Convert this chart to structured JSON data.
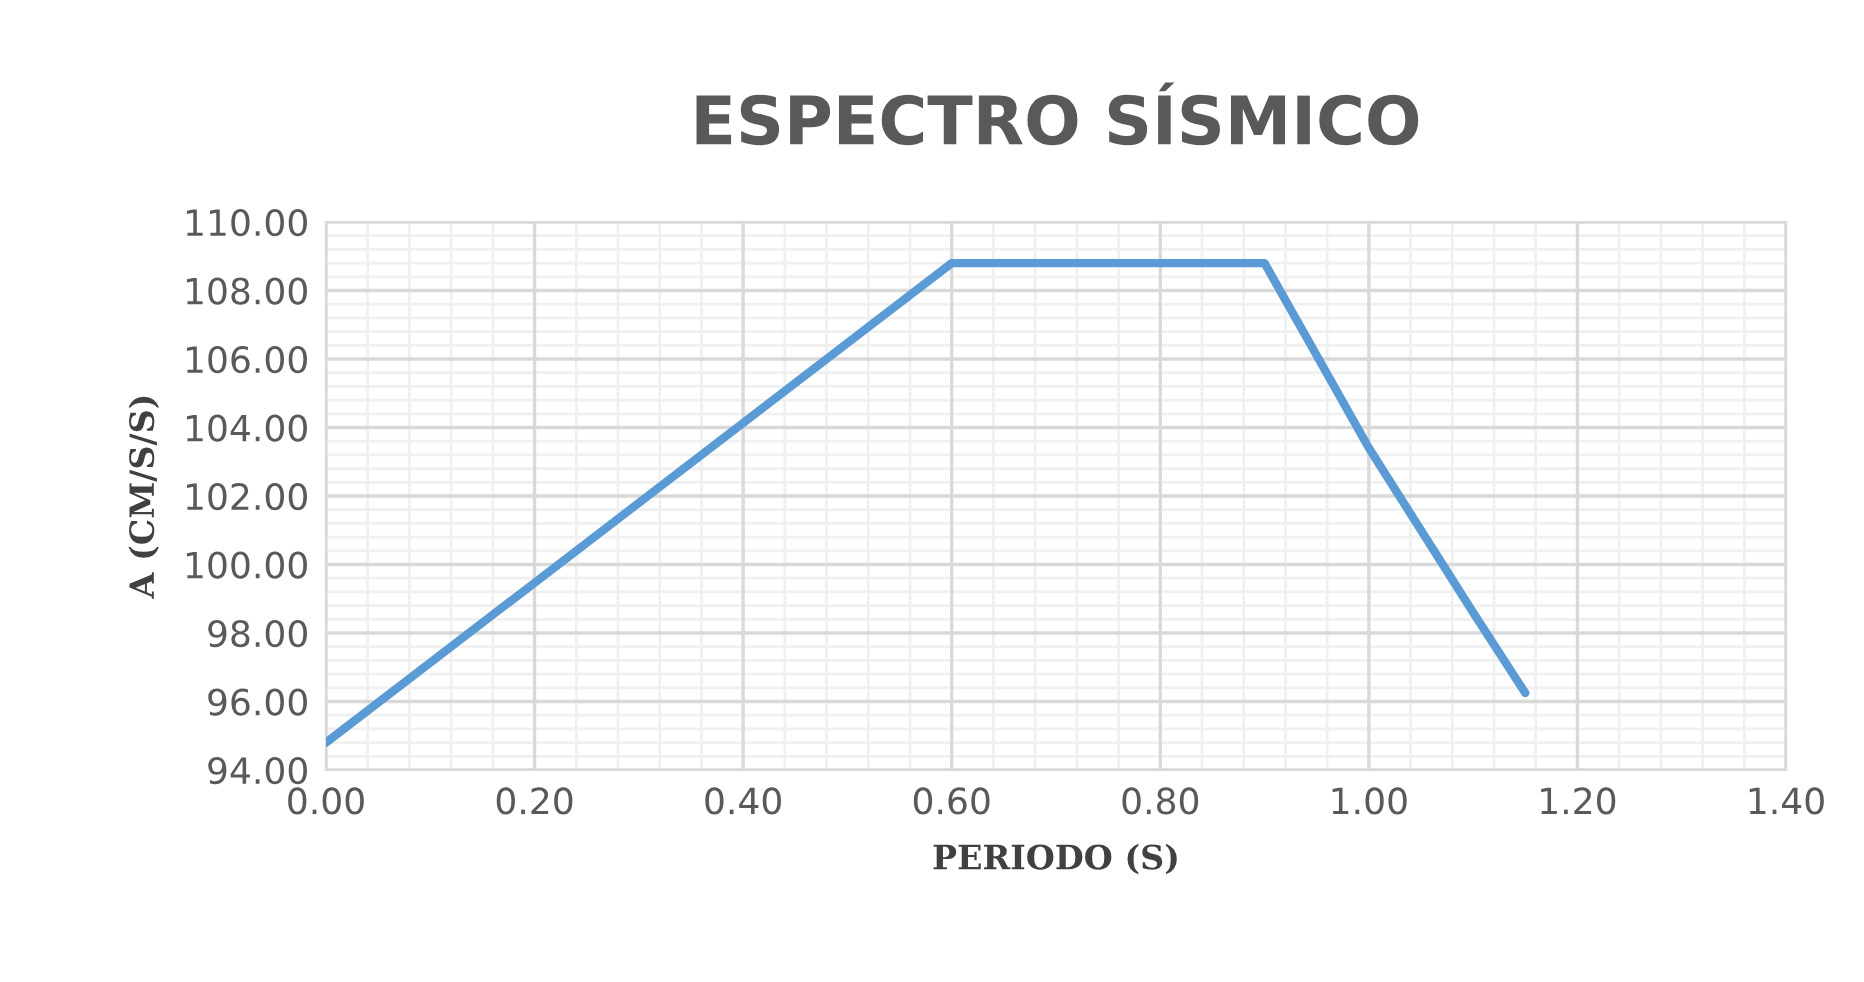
{
  "chart_data": {
    "type": "line",
    "title": "ESPECTRO SÍSMICO",
    "xlabel": "PERIODO (S)",
    "ylabel": "A (CM/S/S)",
    "x": [
      0,
      0.6,
      0.9,
      0.95,
      1.0,
      1.05,
      1.1,
      1.15
    ],
    "series": [
      {
        "color": "#5b9bd5",
        "values": [
          94.8,
          108.8,
          108.8,
          106.1,
          103.4,
          101.0,
          98.6,
          96.25
        ]
      }
    ],
    "xlim": [
      0,
      1.4
    ],
    "ylim": [
      94,
      110
    ],
    "xticks": [
      {
        "value": 0,
        "label": "0.00"
      },
      {
        "value": 0.2,
        "label": "0.20"
      },
      {
        "value": 0.4,
        "label": "0.40"
      },
      {
        "value": 0.6,
        "label": "0.60"
      },
      {
        "value": 0.8,
        "label": "0.80"
      },
      {
        "value": 1.0,
        "label": "1.00"
      },
      {
        "value": 1.2,
        "label": "1.20"
      },
      {
        "value": 1.4,
        "label": "1.40"
      }
    ],
    "yticks": [
      {
        "value": 94,
        "label": "94.00"
      },
      {
        "value": 96,
        "label": "96.00"
      },
      {
        "value": 98,
        "label": "98.00"
      },
      {
        "value": 100,
        "label": "100.00"
      },
      {
        "value": 102,
        "label": "102.00"
      },
      {
        "value": 104,
        "label": "104.00"
      },
      {
        "value": 106,
        "label": "106.00"
      },
      {
        "value": 108,
        "label": "108.00"
      },
      {
        "value": 110,
        "label": "110.00"
      }
    ],
    "grid": true,
    "marker": "none",
    "line_style": "solid"
  }
}
